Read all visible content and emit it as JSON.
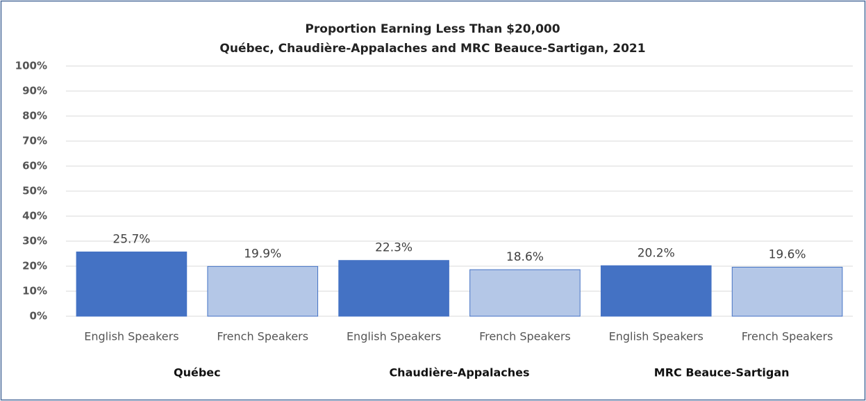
{
  "chart_data": {
    "type": "bar",
    "title": "Proportion Earning Less Than $20,000",
    "subtitle": "Québec, Chaudière-Appalaches and MRC Beauce-Sartigan,  2021",
    "categories": [
      "English Speakers",
      "French Speakers",
      "English Speakers",
      "French Speakers",
      "English Speakers",
      "French Speakers"
    ],
    "groups": [
      "Québec",
      "Chaudière-Appalaches",
      "MRC Beauce-Sartigan"
    ],
    "values": [
      25.7,
      19.9,
      22.3,
      18.6,
      20.2,
      19.6
    ],
    "value_labels": [
      "25.7%",
      "19.9%",
      "22.3%",
      "18.6%",
      "20.2%",
      "19.6%"
    ],
    "colors": [
      "#4472c4",
      "#b4c7e7",
      "#4472c4",
      "#b4c7e7",
      "#4472c4",
      "#b4c7e7"
    ],
    "ylim": [
      0,
      100
    ],
    "yticks": [
      {
        "value": 0,
        "label": "0%"
      },
      {
        "value": 10,
        "label": "10%"
      },
      {
        "value": 20,
        "label": "20%"
      },
      {
        "value": 30,
        "label": "30%"
      },
      {
        "value": 40,
        "label": "40%"
      },
      {
        "value": 50,
        "label": "50%"
      },
      {
        "value": 60,
        "label": "60%"
      },
      {
        "value": 70,
        "label": "70%"
      },
      {
        "value": 80,
        "label": "80%"
      },
      {
        "value": 90,
        "label": "90%"
      },
      {
        "value": 100,
        "label": "100%"
      }
    ],
    "grid": true
  }
}
